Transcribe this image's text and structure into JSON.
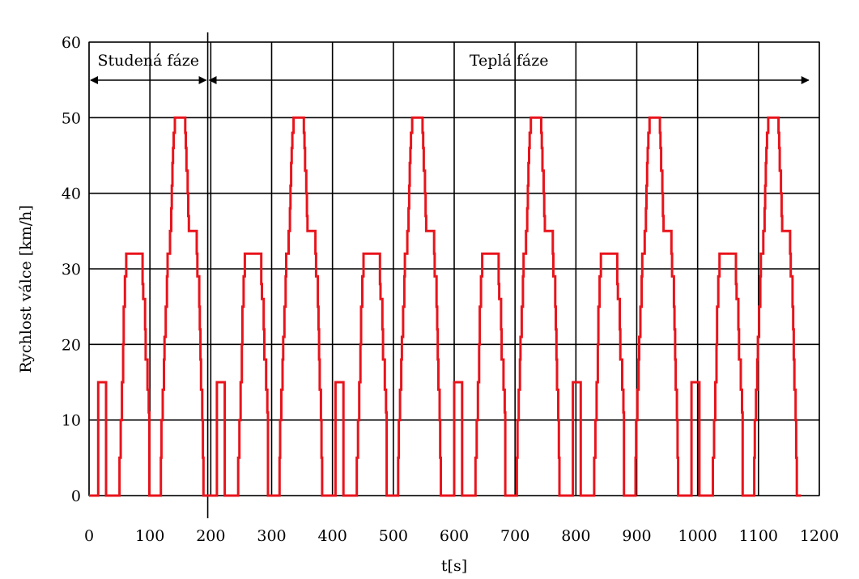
{
  "chart_data": {
    "type": "line",
    "title": "",
    "xlabel": "t[s]",
    "ylabel": "Rychlost válce  [km/h]",
    "xlim": [
      0,
      1200
    ],
    "ylim": [
      0,
      60
    ],
    "x_ticks": [
      "0",
      "100",
      "200",
      "300",
      "400",
      "500",
      "600",
      "700",
      "800",
      "900",
      "1000",
      "1100",
      "1200"
    ],
    "y_ticks": [
      "0",
      "10",
      "20",
      "30",
      "40",
      "50",
      "60"
    ],
    "grid": true,
    "phases": [
      {
        "label": "Studená  fáze",
        "x_start": 0,
        "x_end": 195
      },
      {
        "label": "Teplá  fáze",
        "x_start": 195,
        "x_end": 1185
      }
    ],
    "cycle_period_s": 195,
    "cycle_count": 6,
    "cycle_profile": {
      "x": [
        0,
        11,
        15,
        20,
        28,
        32,
        33,
        49,
        50,
        52,
        54,
        56,
        57,
        59,
        61,
        64,
        66,
        85,
        88,
        89,
        92,
        93,
        96,
        98,
        99,
        116,
        117,
        118,
        119,
        121,
        123,
        124,
        126,
        128,
        129,
        133,
        135,
        136,
        137,
        138,
        139,
        141,
        142,
        143,
        144,
        156,
        158,
        159,
        160,
        162,
        163,
        164,
        165,
        167,
        168,
        169,
        176,
        177,
        178,
        181,
        182,
        183,
        184,
        186,
        187,
        188,
        195
      ],
      "y": [
        0,
        0,
        15,
        15,
        0,
        0,
        0,
        0,
        5,
        10,
        15,
        20,
        25,
        29,
        32,
        32,
        32,
        32,
        28,
        26,
        22,
        18,
        14,
        11,
        0,
        0,
        0,
        5,
        10,
        14,
        18,
        21,
        25,
        29,
        32,
        35,
        38,
        41,
        44,
        46,
        48,
        50,
        50,
        50,
        50,
        50,
        48,
        46,
        43,
        40,
        37,
        35,
        35,
        35,
        35,
        35,
        35,
        32,
        29,
        25,
        22,
        18,
        14,
        10,
        5,
        0,
        0
      ]
    },
    "series": [
      {
        "name": "",
        "color": "#e8141c"
      }
    ]
  }
}
